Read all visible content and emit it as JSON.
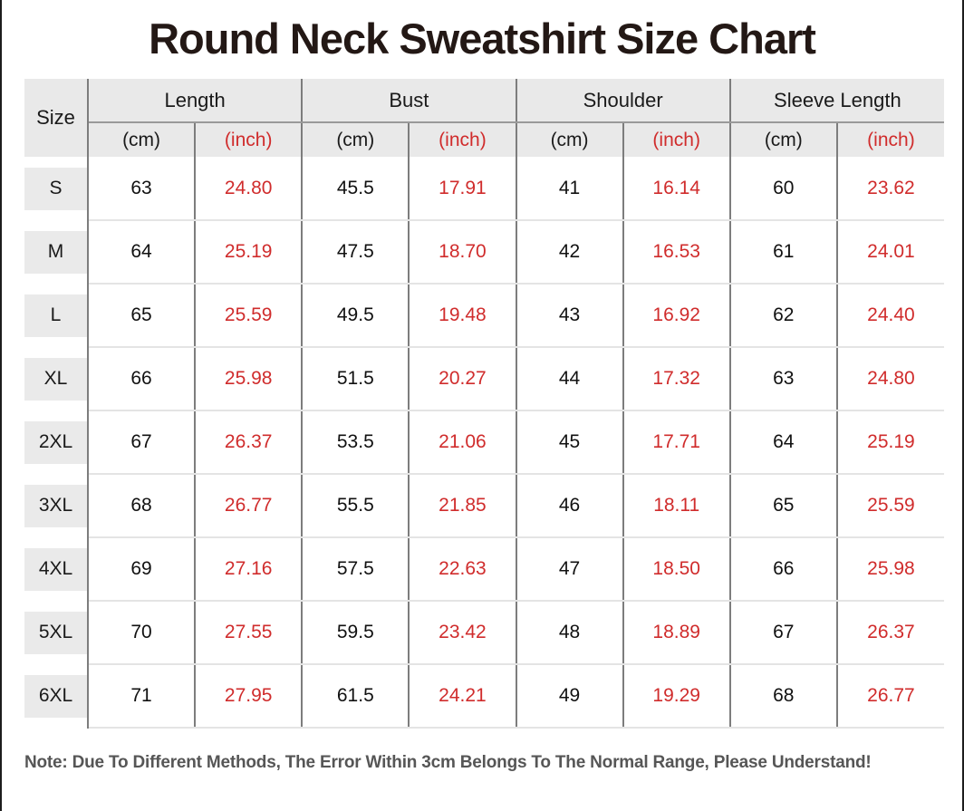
{
  "title": "Round Neck Sweatshirt Size Chart",
  "note": "Note: Due To Different Methods, The Error Within 3cm Belongs To The Normal Range, Please Understand!",
  "colors": {
    "inch_red": "#d02c2c",
    "header_bg": "#e9e9e9",
    "size_cell_bg": "#eaeaea",
    "divider_dark": "#7d7d7d",
    "row_separator": "#e4e4e4",
    "title_black": "#231815",
    "note_gray": "#565656"
  },
  "table": {
    "size_header": "Size",
    "unit_cm": "(cm)",
    "unit_inch": "(inch)",
    "groups": [
      {
        "label": "Length"
      },
      {
        "label": "Bust"
      },
      {
        "label": "Shoulder"
      },
      {
        "label": "Sleeve Length"
      }
    ],
    "rows": [
      {
        "size": "S",
        "values": [
          "63",
          "24.80",
          "45.5",
          "17.91",
          "41",
          "16.14",
          "60",
          "23.62"
        ]
      },
      {
        "size": "M",
        "values": [
          "64",
          "25.19",
          "47.5",
          "18.70",
          "42",
          "16.53",
          "61",
          "24.01"
        ]
      },
      {
        "size": "L",
        "values": [
          "65",
          "25.59",
          "49.5",
          "19.48",
          "43",
          "16.92",
          "62",
          "24.40"
        ]
      },
      {
        "size": "XL",
        "values": [
          "66",
          "25.98",
          "51.5",
          "20.27",
          "44",
          "17.32",
          "63",
          "24.80"
        ]
      },
      {
        "size": "2XL",
        "values": [
          "67",
          "26.37",
          "53.5",
          "21.06",
          "45",
          "17.71",
          "64",
          "25.19"
        ]
      },
      {
        "size": "3XL",
        "values": [
          "68",
          "26.77",
          "55.5",
          "21.85",
          "46",
          "18.11",
          "65",
          "25.59"
        ]
      },
      {
        "size": "4XL",
        "values": [
          "69",
          "27.16",
          "57.5",
          "22.63",
          "47",
          "18.50",
          "66",
          "25.98"
        ]
      },
      {
        "size": "5XL",
        "values": [
          "70",
          "27.55",
          "59.5",
          "23.42",
          "48",
          "18.89",
          "67",
          "26.37"
        ]
      },
      {
        "size": "6XL",
        "values": [
          "71",
          "27.95",
          "61.5",
          "24.21",
          "49",
          "19.29",
          "68",
          "26.77"
        ]
      }
    ]
  },
  "chart_data": {
    "type": "table",
    "title": "Round Neck Sweatshirt Size Chart",
    "column_groups": [
      "Length",
      "Bust",
      "Shoulder",
      "Sleeve Length"
    ],
    "columns": [
      "Size",
      "Length (cm)",
      "Length (inch)",
      "Bust (cm)",
      "Bust (inch)",
      "Shoulder (cm)",
      "Shoulder (inch)",
      "Sleeve Length (cm)",
      "Sleeve Length (inch)"
    ],
    "rows": [
      [
        "S",
        63,
        24.8,
        45.5,
        17.91,
        41,
        16.14,
        60,
        23.62
      ],
      [
        "M",
        64,
        25.19,
        47.5,
        18.7,
        42,
        16.53,
        61,
        24.01
      ],
      [
        "L",
        65,
        25.59,
        49.5,
        19.48,
        43,
        16.92,
        62,
        24.4
      ],
      [
        "XL",
        66,
        25.98,
        51.5,
        20.27,
        44,
        17.32,
        63,
        24.8
      ],
      [
        "2XL",
        67,
        26.37,
        53.5,
        21.06,
        45,
        17.71,
        64,
        25.19
      ],
      [
        "3XL",
        68,
        26.77,
        55.5,
        21.85,
        46,
        18.11,
        65,
        25.59
      ],
      [
        "4XL",
        69,
        27.16,
        57.5,
        22.63,
        47,
        18.5,
        66,
        25.98
      ],
      [
        "5XL",
        70,
        27.55,
        59.5,
        23.42,
        48,
        18.89,
        67,
        26.37
      ],
      [
        "6XL",
        71,
        27.95,
        61.5,
        24.21,
        49,
        19.29,
        68,
        26.77
      ]
    ],
    "note": "Note: Due To Different Methods, The Error Within 3cm Belongs To The Normal Range, Please Understand!"
  }
}
